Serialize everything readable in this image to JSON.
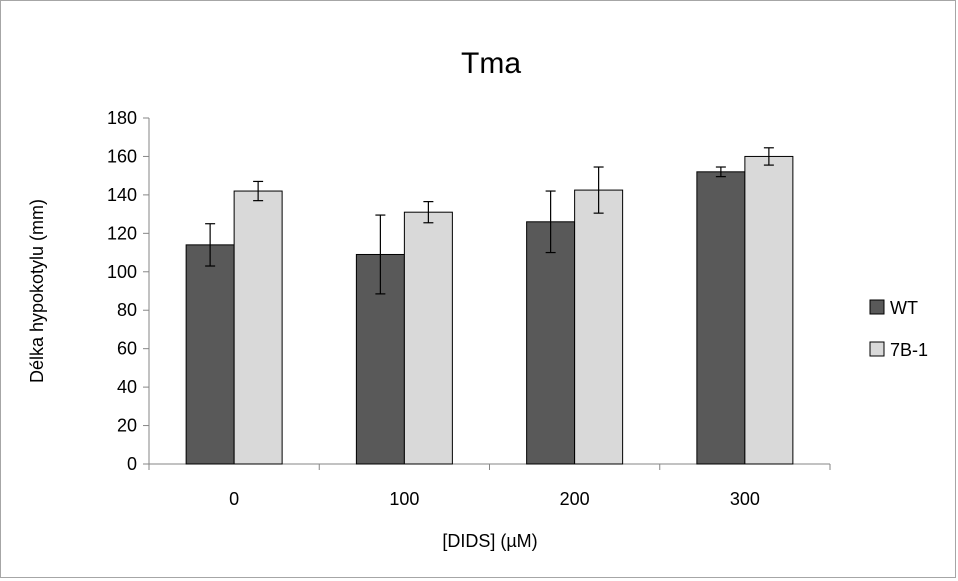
{
  "chart_data": {
    "type": "bar",
    "title": "Tma",
    "xlabel": "[DIDS] (µM)",
    "ylabel": "Délka hypokotylu (mm)",
    "categories": [
      "0",
      "100",
      "200",
      "300"
    ],
    "ylim": [
      0,
      180
    ],
    "yticks": [
      0,
      20,
      40,
      60,
      80,
      100,
      120,
      140,
      160,
      180
    ],
    "legend_position": "right",
    "grid": false,
    "series": [
      {
        "name": "WT",
        "color": "#595959",
        "values": [
          114,
          109,
          126,
          152
        ],
        "errors": [
          11,
          20.5,
          16,
          2.5
        ]
      },
      {
        "name": "7B-1",
        "color": "#d9d9d9",
        "values": [
          142,
          131,
          142.5,
          160
        ],
        "errors": [
          5,
          5.5,
          12,
          4.5
        ]
      }
    ]
  }
}
